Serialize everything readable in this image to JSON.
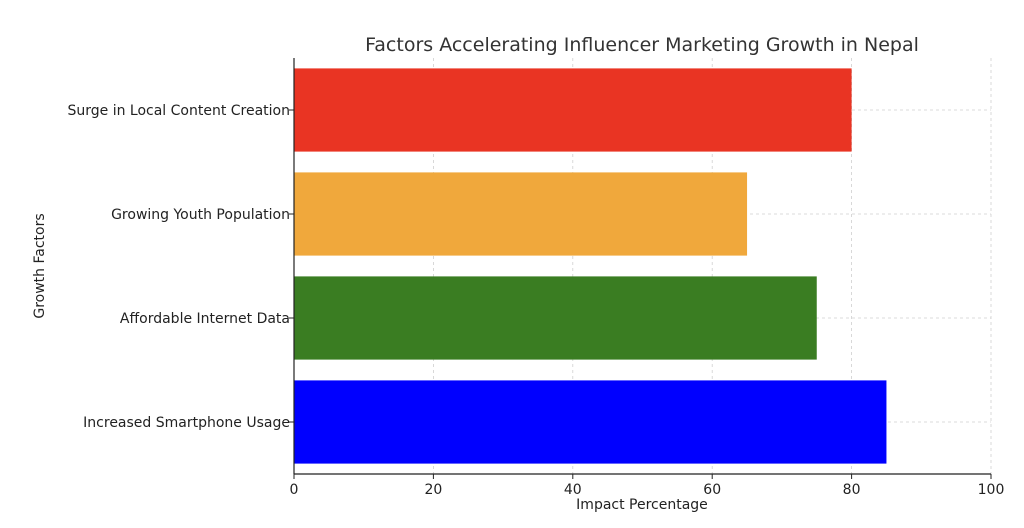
{
  "chart_data": {
    "type": "bar",
    "orientation": "horizontal",
    "title": "Factors Accelerating Influencer Marketing Growth in Nepal",
    "xlabel": "Impact Percentage",
    "ylabel": "Growth Factors",
    "xlim": [
      0,
      100
    ],
    "xticks": [
      "0",
      "20",
      "40",
      "60",
      "80",
      "100"
    ],
    "grid": true,
    "categories": [
      "Increased Smartphone Usage",
      "Affordable Internet Data",
      "Growing Youth Population",
      "Surge in Local Content Creation"
    ],
    "values": [
      85,
      75,
      65,
      80
    ],
    "colors": [
      "#0000ff",
      "#3a7d22",
      "#f0a83c",
      "#e93423"
    ]
  }
}
